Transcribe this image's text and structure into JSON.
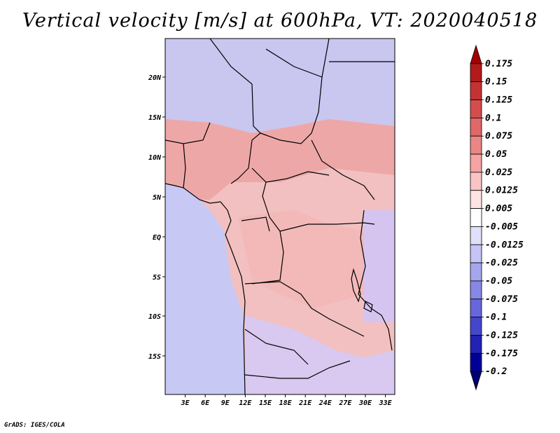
{
  "title": "Vertical velocity [m/s] at 600hPa, VT: 2020040518",
  "credit": "GrADS: IGES/COLA",
  "map": {
    "lon_labels": [
      "3E",
      "6E",
      "9E",
      "12E",
      "15E",
      "18E",
      "21E",
      "24E",
      "27E",
      "30E",
      "33E"
    ],
    "lat_labels": [
      "20N",
      "15N",
      "10N",
      "5N",
      "EQ",
      "5S",
      "10S",
      "15S"
    ]
  },
  "colorbar": {
    "labels": [
      "0.175",
      "0.15",
      "0.125",
      "0.1",
      "0.075",
      "0.05",
      "0.025",
      "0.0125",
      "0.005",
      "-0.005",
      "-0.0125",
      "-0.025",
      "-0.05",
      "-0.075",
      "-0.1",
      "-0.125",
      "-0.175",
      "-0.2"
    ],
    "colors": [
      "#a10000",
      "#b41a1a",
      "#c43333",
      "#d44d4d",
      "#e06868",
      "#ec8585",
      "#f5a3a3",
      "#fac4c4",
      "#fde3e3",
      "#ffffff",
      "#e0e0fb",
      "#c4c4f5",
      "#a6a6ee",
      "#8787e6",
      "#6767dc",
      "#4646cc",
      "#2222b4",
      "#000096",
      "#000070"
    ]
  }
}
